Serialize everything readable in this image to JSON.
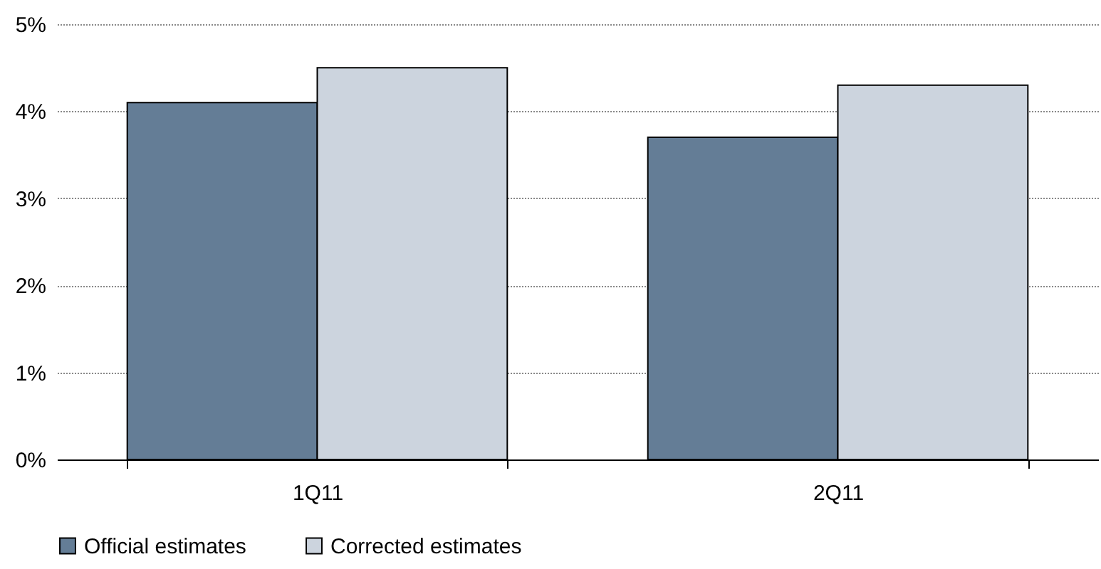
{
  "chart_data": {
    "type": "bar",
    "categories": [
      "1Q11",
      "2Q11"
    ],
    "series": [
      {
        "name": "Official estimates",
        "color": "#647d96",
        "values": [
          4.1,
          3.7
        ]
      },
      {
        "name": "Corrected estimates",
        "color": "#ccd4de",
        "values": [
          4.5,
          4.3
        ]
      }
    ],
    "ylim": [
      0,
      5
    ],
    "yticks": [
      {
        "value": 0,
        "label": "0%"
      },
      {
        "value": 1,
        "label": "1%"
      },
      {
        "value": 2,
        "label": "2%"
      },
      {
        "value": 3,
        "label": "3%"
      },
      {
        "value": 4,
        "label": "4%"
      },
      {
        "value": 5,
        "label": "5%"
      }
    ],
    "grid": "y",
    "legend": "bottom"
  }
}
